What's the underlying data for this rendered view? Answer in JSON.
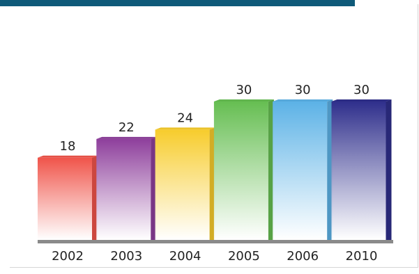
{
  "colors": {
    "topbar": "#0f5a79",
    "axis": "#8a8a8a"
  },
  "chart_data": {
    "type": "bar",
    "title": "",
    "xlabel": "",
    "ylabel": "",
    "categories": [
      "2002",
      "2003",
      "2004",
      "2005",
      "2006",
      "2010"
    ],
    "values": [
      18,
      22,
      24,
      30,
      30,
      30
    ],
    "value_labels": [
      "18",
      "22",
      "24",
      "30",
      "30",
      "30"
    ],
    "colors": [
      "#f0544a",
      "#8e3f9c",
      "#f7cc2c",
      "#66be52",
      "#5cb2e6",
      "#2f2f8c"
    ],
    "ylim": [
      0,
      30
    ],
    "grid": false,
    "legend": "none"
  }
}
